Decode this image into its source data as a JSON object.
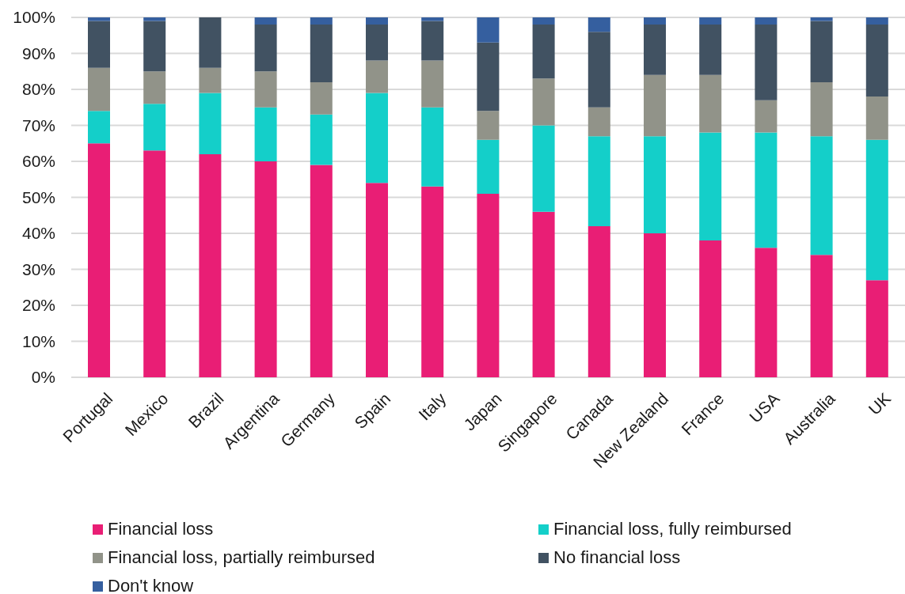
{
  "chart_data": {
    "type": "bar",
    "stacked": true,
    "categories": [
      "Portugal",
      "Mexico",
      "Brazil",
      "Argentina",
      "Germany",
      "Spain",
      "Italy",
      "Japan",
      "Singapore",
      "Canada",
      "New Zealand",
      "France",
      "USA",
      "Australia",
      "UK"
    ],
    "series": [
      {
        "name": "Financial loss",
        "color": "#e91e75",
        "values": [
          65,
          63,
          62,
          60,
          59,
          54,
          53,
          51,
          46,
          42,
          40,
          38,
          36,
          34,
          27
        ]
      },
      {
        "name": "Financial loss, fully reimbursed",
        "color": "#14cfc9",
        "values": [
          9,
          13,
          17,
          15,
          14,
          25,
          22,
          15,
          24,
          25,
          27,
          30,
          32,
          33,
          39
        ]
      },
      {
        "name": "Financial loss, partially reimbursed",
        "color": "#919389",
        "values": [
          12,
          9,
          7,
          10,
          9,
          9,
          13,
          8,
          13,
          8,
          17,
          16,
          9,
          15,
          12
        ]
      },
      {
        "name": "No financial loss",
        "color": "#415262",
        "values": [
          13,
          14,
          14,
          13,
          16,
          10,
          11,
          19,
          15,
          21,
          14,
          14,
          21,
          17,
          20
        ]
      },
      {
        "name": "Don't know",
        "color": "#355f9f",
        "values": [
          1,
          1,
          0,
          2,
          2,
          2,
          1,
          7,
          2,
          4,
          2,
          2,
          2,
          1,
          2
        ]
      }
    ],
    "ylim": [
      0,
      100
    ],
    "yticks": [
      {
        "value": 0,
        "label": "0%"
      },
      {
        "value": 10,
        "label": "10%"
      },
      {
        "value": 20,
        "label": "20%"
      },
      {
        "value": 30,
        "label": "30%"
      },
      {
        "value": 40,
        "label": "40%"
      },
      {
        "value": 50,
        "label": "50%"
      },
      {
        "value": 60,
        "label": "60%"
      },
      {
        "value": 70,
        "label": "70%"
      },
      {
        "value": 80,
        "label": "80%"
      },
      {
        "value": 90,
        "label": "90%"
      },
      {
        "value": 100,
        "label": "100%"
      }
    ],
    "grid": "y",
    "legend": "bottom"
  }
}
